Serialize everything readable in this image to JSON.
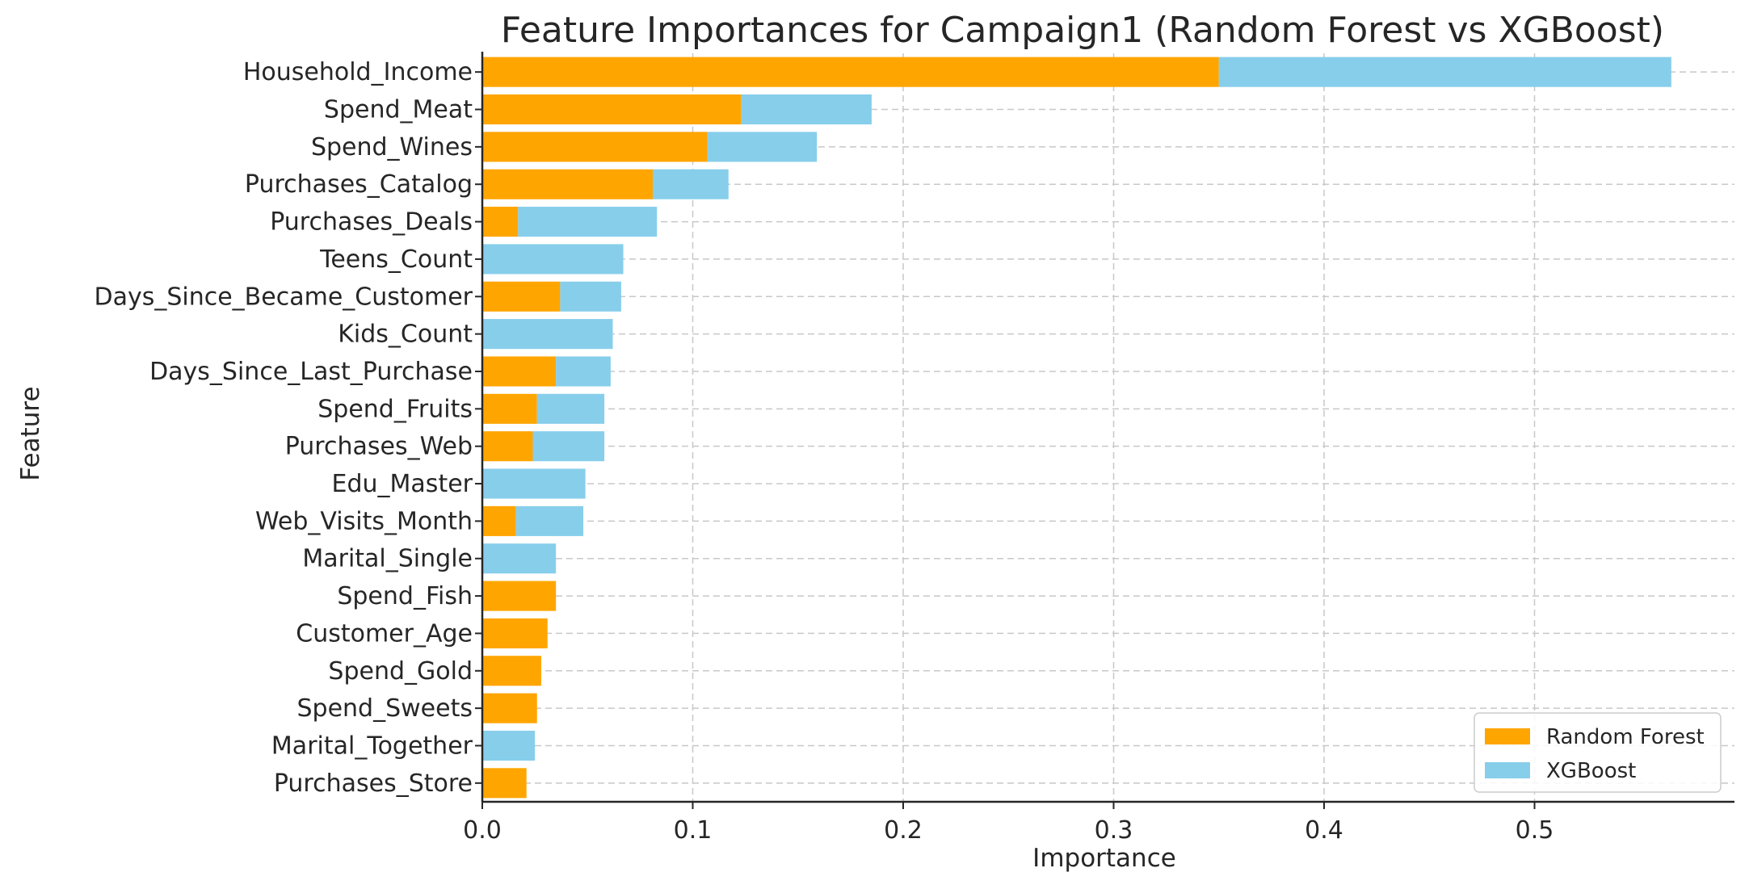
{
  "chart_data": {
    "type": "bar",
    "orientation": "horizontal",
    "stacked": true,
    "title": "Feature Importances for Campaign1 (Random Forest vs XGBoost)",
    "xlabel": "Importance",
    "ylabel": "Feature",
    "xlim": [
      0,
      0.595
    ],
    "xticks": [
      "0.0",
      "0.1",
      "0.2",
      "0.3",
      "0.4",
      "0.5"
    ],
    "grid": true,
    "legend_position": "bottom-right",
    "categories": [
      "Household_Income",
      "Spend_Meat",
      "Spend_Wines",
      "Purchases_Catalog",
      "Purchases_Deals",
      "Teens_Count",
      "Days_Since_Became_Customer",
      "Kids_Count",
      "Days_Since_Last_Purchase",
      "Spend_Fruits",
      "Purchases_Web",
      "Edu_Master",
      "Web_Visits_Month",
      "Marital_Single",
      "Spend_Fish",
      "Customer_Age",
      "Spend_Gold",
      "Spend_Sweets",
      "Marital_Together",
      "Purchases_Store"
    ],
    "series": [
      {
        "name": "Random Forest",
        "color": "#FFA500",
        "values": [
          0.35,
          0.123,
          0.107,
          0.081,
          0.017,
          0.0,
          0.037,
          0.0,
          0.035,
          0.026,
          0.024,
          0.0,
          0.016,
          0.0,
          0.035,
          0.031,
          0.028,
          0.026,
          0.0,
          0.021
        ]
      },
      {
        "name": "XGBoost",
        "color": "#87CEEB",
        "values": [
          0.215,
          0.062,
          0.052,
          0.036,
          0.066,
          0.067,
          0.029,
          0.062,
          0.026,
          0.032,
          0.034,
          0.049,
          0.032,
          0.035,
          0.0,
          0.0,
          0.0,
          0.0,
          0.025,
          0.0
        ]
      }
    ]
  }
}
